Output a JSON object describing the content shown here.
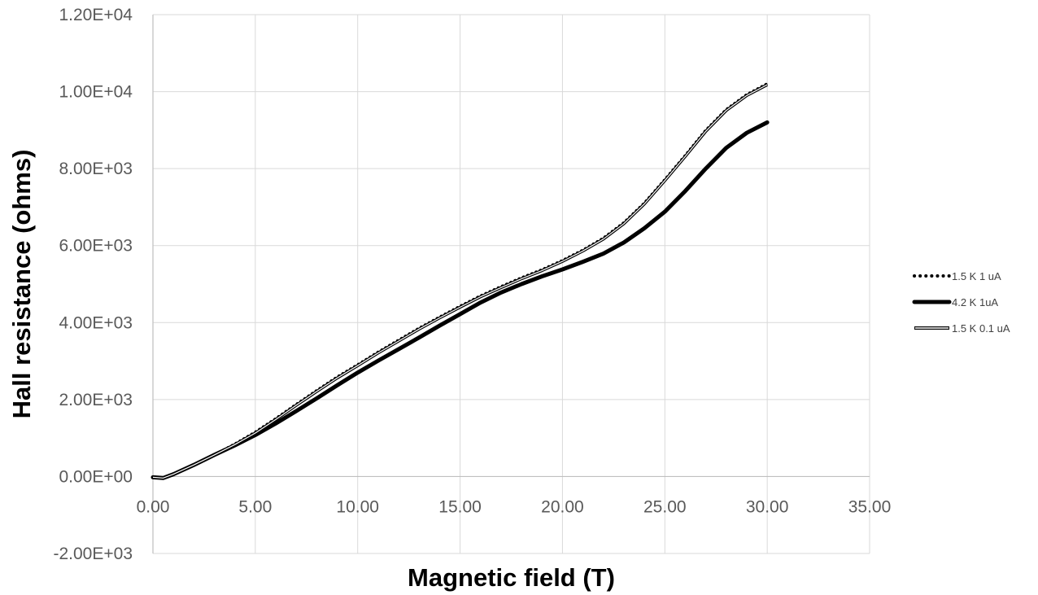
{
  "chart_data": {
    "type": "line",
    "title": "",
    "xlabel": "Magnetic field (T)",
    "ylabel": "Hall resistance (ohms)",
    "xlim": [
      0,
      35
    ],
    "ylim": [
      -2000,
      12000
    ],
    "x_ticks": [
      "0.00",
      "5.00",
      "10.00",
      "15.00",
      "20.00",
      "25.00",
      "30.00",
      "35.00"
    ],
    "y_ticks": [
      "-2.00E+03",
      "0.00E+00",
      "2.00E+03",
      "4.00E+03",
      "6.00E+03",
      "8.00E+03",
      "1.00E+04",
      "1.20E+04"
    ],
    "x_tick_values": [
      0,
      5,
      10,
      15,
      20,
      25,
      30,
      35
    ],
    "y_tick_values": [
      -2000,
      0,
      2000,
      4000,
      6000,
      8000,
      10000,
      12000
    ],
    "grid": true,
    "legend_position": "right",
    "series": [
      {
        "name": "1.5 K 1 uA",
        "style": "dotted",
        "color": "#000000",
        "x": [
          0,
          0.5,
          1,
          2,
          3,
          4,
          5,
          6,
          7,
          8,
          9,
          10,
          11,
          12,
          13,
          14,
          15,
          16,
          17,
          18,
          19,
          20,
          21,
          22,
          23,
          24,
          25,
          26,
          27,
          28,
          29,
          30
        ],
        "y": [
          -20,
          -40,
          60,
          300,
          560,
          840,
          1150,
          1500,
          1870,
          2230,
          2580,
          2900,
          3230,
          3540,
          3850,
          4140,
          4420,
          4690,
          4930,
          5160,
          5370,
          5610,
          5880,
          6190,
          6590,
          7100,
          7710,
          8340,
          8990,
          9530,
          9920,
          10200
        ]
      },
      {
        "name": "4.2 K 1uA",
        "style": "solid-thick",
        "color": "#000000",
        "x": [
          0,
          0.5,
          1,
          2,
          3,
          4,
          5,
          6,
          7,
          8,
          9,
          10,
          11,
          12,
          13,
          14,
          15,
          16,
          17,
          18,
          19,
          20,
          21,
          22,
          23,
          24,
          25,
          26,
          27,
          28,
          29,
          30
        ],
        "y": [
          -20,
          -40,
          60,
          300,
          560,
          810,
          1080,
          1380,
          1700,
          2030,
          2370,
          2700,
          3010,
          3310,
          3610,
          3920,
          4220,
          4520,
          4780,
          5000,
          5200,
          5380,
          5580,
          5790,
          6080,
          6450,
          6880,
          7420,
          8000,
          8540,
          8930,
          9200
        ]
      },
      {
        "name": "1.5 K 0.1 uA",
        "style": "double",
        "color": "#000000",
        "x": [
          0,
          0.5,
          1,
          2,
          3,
          4,
          5,
          6,
          7,
          8,
          9,
          10,
          11,
          12,
          13,
          14,
          15,
          16,
          17,
          18,
          19,
          20,
          21,
          22,
          23,
          24,
          25,
          26,
          27,
          28,
          29,
          30
        ],
        "y": [
          -20,
          -40,
          60,
          300,
          560,
          830,
          1130,
          1480,
          1850,
          2210,
          2560,
          2880,
          3210,
          3520,
          3830,
          4120,
          4400,
          4670,
          4910,
          5140,
          5350,
          5590,
          5860,
          6170,
          6570,
          7080,
          7690,
          8320,
          8970,
          9510,
          9900,
          10180
        ]
      }
    ]
  }
}
